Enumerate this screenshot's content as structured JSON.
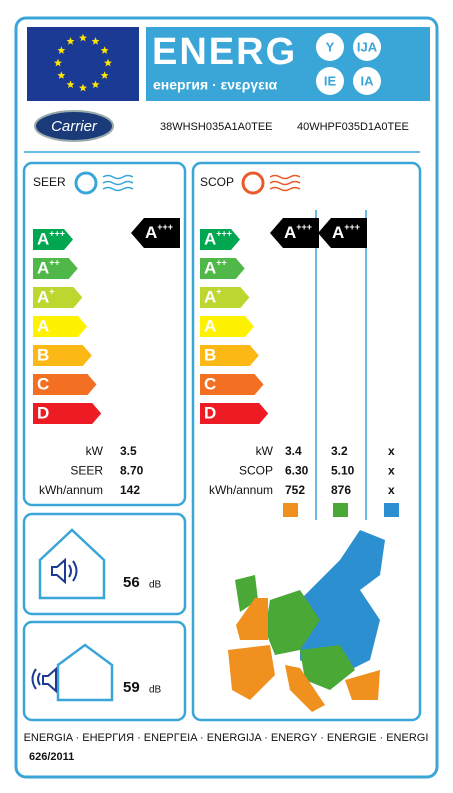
{
  "header": {
    "title": "ENERG",
    "subtitle": "енергия · ενεργεια",
    "languages": [
      "Y",
      "IJA",
      "IE",
      "IA"
    ]
  },
  "brand": "Carrier",
  "models": [
    "38WHSH035A1A0TEE",
    "40WHPF035D1A0TEE"
  ],
  "classes": [
    {
      "letter": "A",
      "sup": "+++"
    },
    {
      "letter": "A",
      "sup": "++"
    },
    {
      "letter": "A",
      "sup": "+"
    },
    {
      "letter": "A"
    },
    {
      "letter": "B"
    },
    {
      "letter": "C"
    },
    {
      "letter": "D"
    }
  ],
  "cooling": {
    "label": "SEER",
    "rating": {
      "letter": "A",
      "sup": "+++"
    },
    "rows": [
      {
        "label": "kW",
        "values": [
          "3.5"
        ]
      },
      {
        "label": "SEER",
        "values": [
          "8.70"
        ]
      },
      {
        "label": "kWh/annum",
        "values": [
          "142"
        ]
      }
    ]
  },
  "heating": {
    "label": "SCOP",
    "ratings": [
      {
        "letter": "A",
        "sup": "+++"
      },
      {
        "letter": "A",
        "sup": "+++"
      }
    ],
    "rows": [
      {
        "label": "kW",
        "values": [
          "3.4",
          "3.2",
          "x"
        ]
      },
      {
        "label": "SCOP",
        "values": [
          "6.30",
          "5.10",
          "x"
        ]
      },
      {
        "label": "kWh/annum",
        "values": [
          "752",
          "876",
          "x"
        ]
      }
    ]
  },
  "noise": [
    {
      "value": "56",
      "unit": "dB"
    },
    {
      "value": "59",
      "unit": "dB"
    }
  ],
  "footer": {
    "languages": "ENERGIA · ЕНЕРГИЯ · ΕΝΕΡΓΕΙΑ · ENERGIJA · ENERGY · ENERGIE · ENERGI",
    "regulation": "626/2011"
  }
}
